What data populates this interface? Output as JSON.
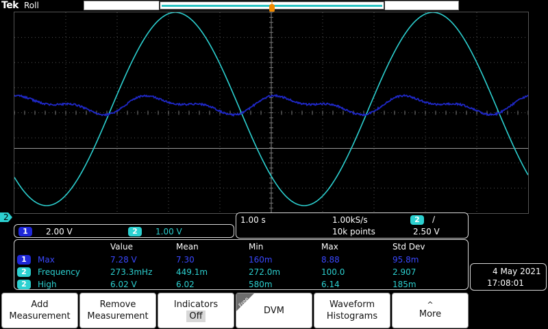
{
  "header": {
    "brand": "Tek",
    "mode": "Roll"
  },
  "colors": {
    "ch1": "#1f28d8",
    "ch2": "#2cd0d0",
    "trigger": "#f08a00"
  },
  "channels": [
    {
      "badge": "1",
      "scale": "2.00 V"
    },
    {
      "badge": "2",
      "scale": "1.00 V"
    }
  ],
  "ch2_level_marker": "2",
  "timebase": {
    "horizontal_scale": "1.00 s",
    "sample_rate": "1.00kS/s",
    "record_length": "10k points",
    "trigger_source": "2",
    "trigger_slope_icon": "rising-edge-icon",
    "trigger_slope_glyph": "∕",
    "trigger_level": "2.50 V"
  },
  "measurements": {
    "headers": [
      "Value",
      "Mean",
      "Min",
      "Max",
      "Std Dev"
    ],
    "rows": [
      {
        "source": "1",
        "name": "Max",
        "value": "7.28 V",
        "mean": "7.30",
        "min": "160m",
        "max": "8.88",
        "stddev": "95.8m"
      },
      {
        "source": "2",
        "name": "Frequency",
        "value": "273.3mHz",
        "mean": "449.1m",
        "min": "272.0m",
        "max": "100.0",
        "stddev": "2.907"
      },
      {
        "source": "2",
        "name": "High",
        "value": "6.02 V",
        "mean": "6.02",
        "min": "580m",
        "max": "6.14",
        "stddev": "185m"
      }
    ]
  },
  "datetime": {
    "date": "4 May 2021",
    "time": "17:08:01"
  },
  "buttons": {
    "add": [
      "Add",
      "Measurement"
    ],
    "remove": [
      "Remove",
      "Measurement"
    ],
    "indicators": {
      "label": "Indicators",
      "value": "Off"
    },
    "free_tag": "Free",
    "dvm": "DVM",
    "histograms": [
      "Waveform",
      "Histograms"
    ],
    "more": "More",
    "more_glyph": "^"
  }
}
